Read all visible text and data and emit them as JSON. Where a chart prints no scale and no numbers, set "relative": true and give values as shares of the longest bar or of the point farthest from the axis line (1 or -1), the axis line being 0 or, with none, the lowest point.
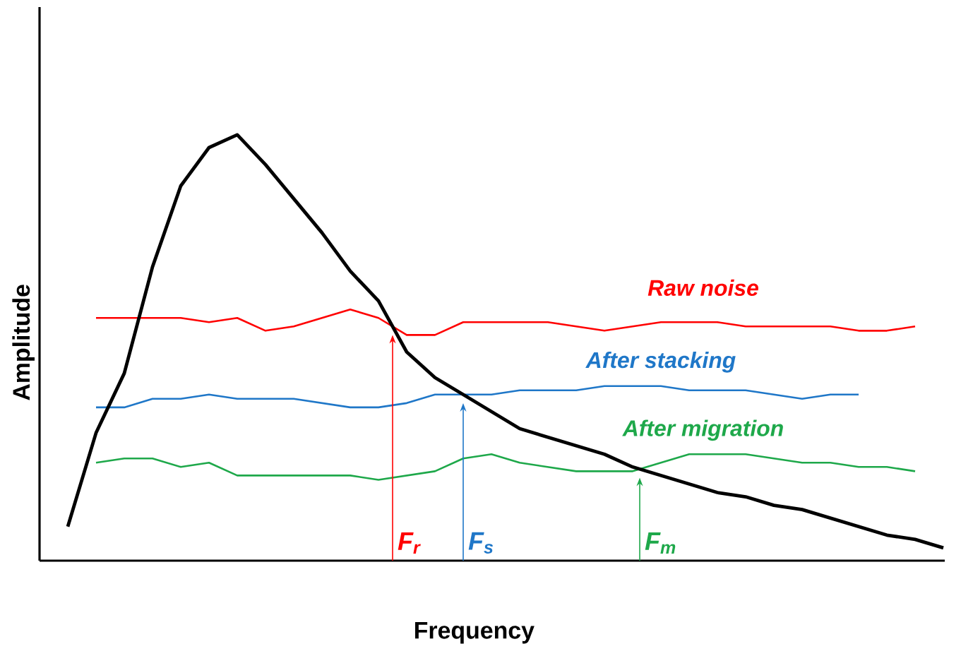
{
  "chart_data": {
    "type": "line",
    "relative": true,
    "xlabel": "Frequency",
    "ylabel": "Amplitude",
    "marker": "none",
    "line_style": "solid",
    "categories": [
      null,
      null,
      null,
      null,
      null,
      null,
      null,
      null,
      null,
      null,
      null,
      null,
      null,
      null,
      null,
      null,
      null,
      null,
      null,
      null,
      null,
      null,
      null,
      null,
      null,
      null,
      null,
      null,
      null,
      null,
      null,
      null
    ],
    "series": [
      {
        "color": "#ff0000",
        "name": "Raw noise",
        "values": [
          null,
          0.57,
          0.57,
          0.57,
          0.57,
          0.56,
          0.57,
          0.54,
          0.55,
          0.57,
          0.59,
          0.57,
          0.53,
          0.53,
          0.56,
          0.56,
          0.56,
          0.56,
          0.55,
          0.54,
          0.55,
          0.56,
          0.56,
          0.56,
          0.55,
          0.55,
          0.55,
          0.55,
          0.54,
          0.54,
          0.55,
          null
        ]
      },
      {
        "color": "#1f77c8",
        "name": "After stacking",
        "values": [
          null,
          0.36,
          0.36,
          0.38,
          0.38,
          0.39,
          0.38,
          0.38,
          0.38,
          0.37,
          0.36,
          0.36,
          0.37,
          0.39,
          0.39,
          0.39,
          0.4,
          0.4,
          0.4,
          0.41,
          0.41,
          0.41,
          0.4,
          0.4,
          0.4,
          0.39,
          0.38,
          0.39,
          0.39,
          null,
          null,
          null
        ]
      },
      {
        "color": "#1ea84a",
        "name": "After migration",
        "values": [
          null,
          0.23,
          0.24,
          0.24,
          0.22,
          0.23,
          0.2,
          0.2,
          0.2,
          0.2,
          0.2,
          0.19,
          0.2,
          0.21,
          0.24,
          0.25,
          0.23,
          0.22,
          0.21,
          0.21,
          0.21,
          0.23,
          0.25,
          0.25,
          0.25,
          0.24,
          0.23,
          0.23,
          0.22,
          0.22,
          0.21,
          null
        ]
      },
      {
        "color": "#000000",
        "values": [
          0.08,
          0.3,
          0.44,
          0.69,
          0.88,
          0.97,
          1.0,
          0.93,
          0.85,
          0.77,
          0.68,
          0.61,
          0.49,
          0.43,
          0.39,
          0.35,
          0.31,
          0.29,
          0.27,
          0.25,
          0.22,
          0.2,
          0.18,
          0.16,
          0.15,
          0.13,
          0.12,
          0.1,
          0.08,
          0.06,
          0.05,
          0.03
        ]
      }
    ],
    "annotations": [
      "F$_{r}$",
      "F$_{s}$",
      "F$_{m}$"
    ]
  }
}
